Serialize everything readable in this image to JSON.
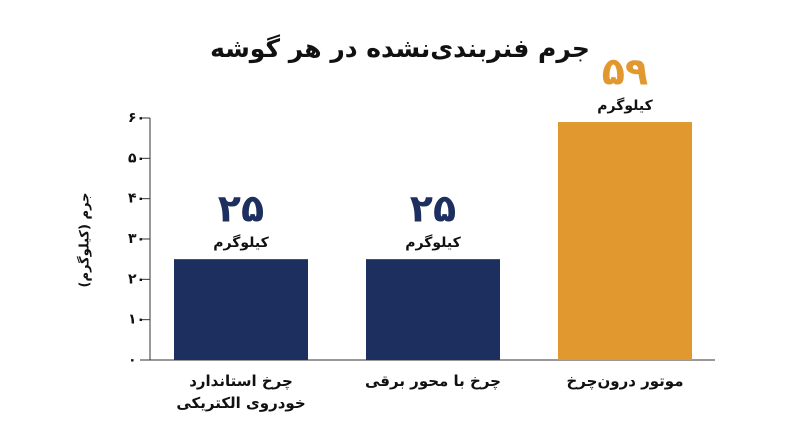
{
  "chart_data": {
    "type": "bar",
    "title": "جرم فنربندی‌نشده در هر گوشه",
    "y_label": "جرم (کیلوگرم)",
    "categories": [
      "چرخ استاندارد خودروی الکتریکی",
      "چرخ با محور برقی",
      "موتور درون‌چرخ"
    ],
    "values": [
      25,
      25,
      59
    ],
    "value_labels": [
      "۲۵",
      "۲۵",
      "۵۹"
    ],
    "value_unit": "کیلوگرم",
    "colors": [
      "#1c2f5f",
      "#1c2f5f",
      "#e0982f"
    ],
    "ylim": [
      0,
      60
    ],
    "yticks": [
      {
        "value": 0,
        "label": "۰"
      },
      {
        "value": 10,
        "label": "۱۰"
      },
      {
        "value": 20,
        "label": "۲۰"
      },
      {
        "value": 30,
        "label": "۳۰"
      },
      {
        "value": 40,
        "label": "۴۰"
      },
      {
        "value": 50,
        "label": "۵۰"
      },
      {
        "value": 60,
        "label": "۶۰"
      }
    ]
  }
}
